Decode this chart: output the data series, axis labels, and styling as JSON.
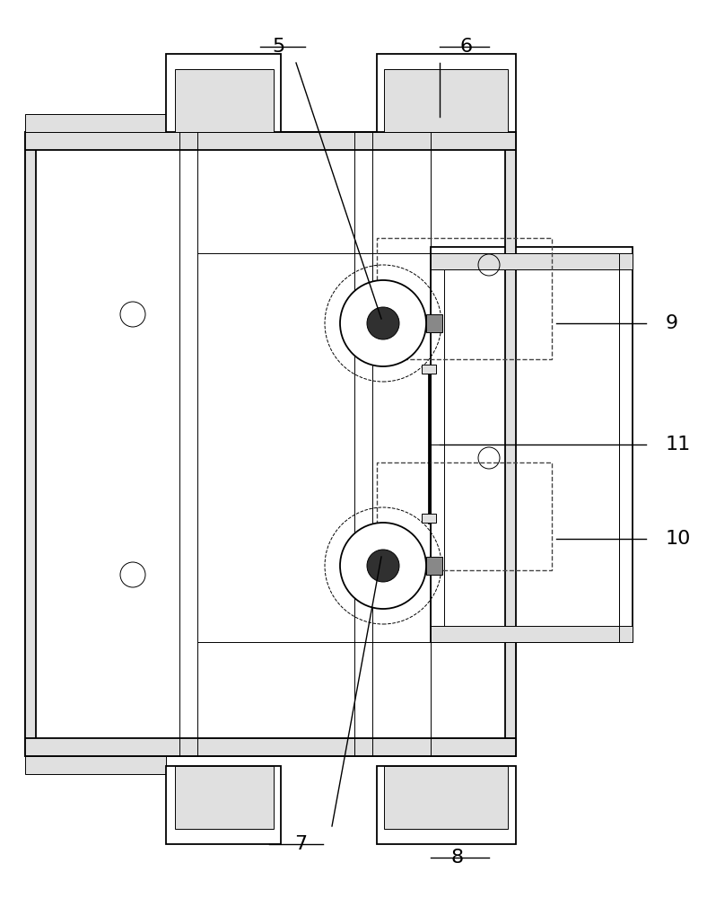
{
  "bg_color": "#ffffff",
  "line_color": "#000000",
  "fig_width": 7.88,
  "fig_height": 10.0,
  "lw_main": 1.3,
  "lw_thin": 0.7,
  "lw_thick": 2.0,
  "fc_white": "#ffffff",
  "fc_light": "#f5f5f5",
  "fc_gray": "#e0e0e0",
  "dashed_color": "#444444"
}
